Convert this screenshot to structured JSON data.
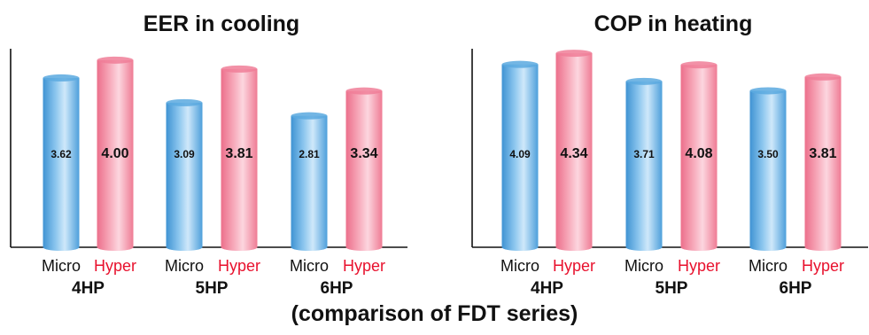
{
  "caption": "(comparison of FDT series)",
  "colors": {
    "micro": "#5aa9df",
    "hyper": "#f07e98",
    "hyper_label": "#e8112d",
    "micro_label": "#111111"
  },
  "chart_data": [
    {
      "type": "bar",
      "title": "EER in cooling",
      "categories": [
        "4HP",
        "5HP",
        "6HP"
      ],
      "bar_labels": [
        "Micro",
        "Hyper"
      ],
      "series": [
        {
          "name": "Micro",
          "values": [
            3.62,
            3.09,
            2.81
          ]
        },
        {
          "name": "Hyper",
          "values": [
            4.0,
            3.81,
            3.34
          ]
        }
      ],
      "value_labels": [
        [
          "3.62",
          "3.09",
          "2.81"
        ],
        [
          "4.00",
          "3.81",
          "3.34"
        ]
      ],
      "ylim": [
        0,
        4.3
      ],
      "grid": false
    },
    {
      "type": "bar",
      "title": "COP in heating",
      "categories": [
        "4HP",
        "5HP",
        "6HP"
      ],
      "bar_labels": [
        "Micro",
        "Hyper"
      ],
      "series": [
        {
          "name": "Micro",
          "values": [
            4.09,
            3.71,
            3.5
          ]
        },
        {
          "name": "Hyper",
          "values": [
            4.34,
            4.08,
            3.81
          ]
        }
      ],
      "value_labels": [
        [
          "4.09",
          "3.71",
          "3.50"
        ],
        [
          "4.34",
          "4.08",
          "3.81"
        ]
      ],
      "ylim": [
        0,
        4.5
      ],
      "grid": false
    }
  ]
}
